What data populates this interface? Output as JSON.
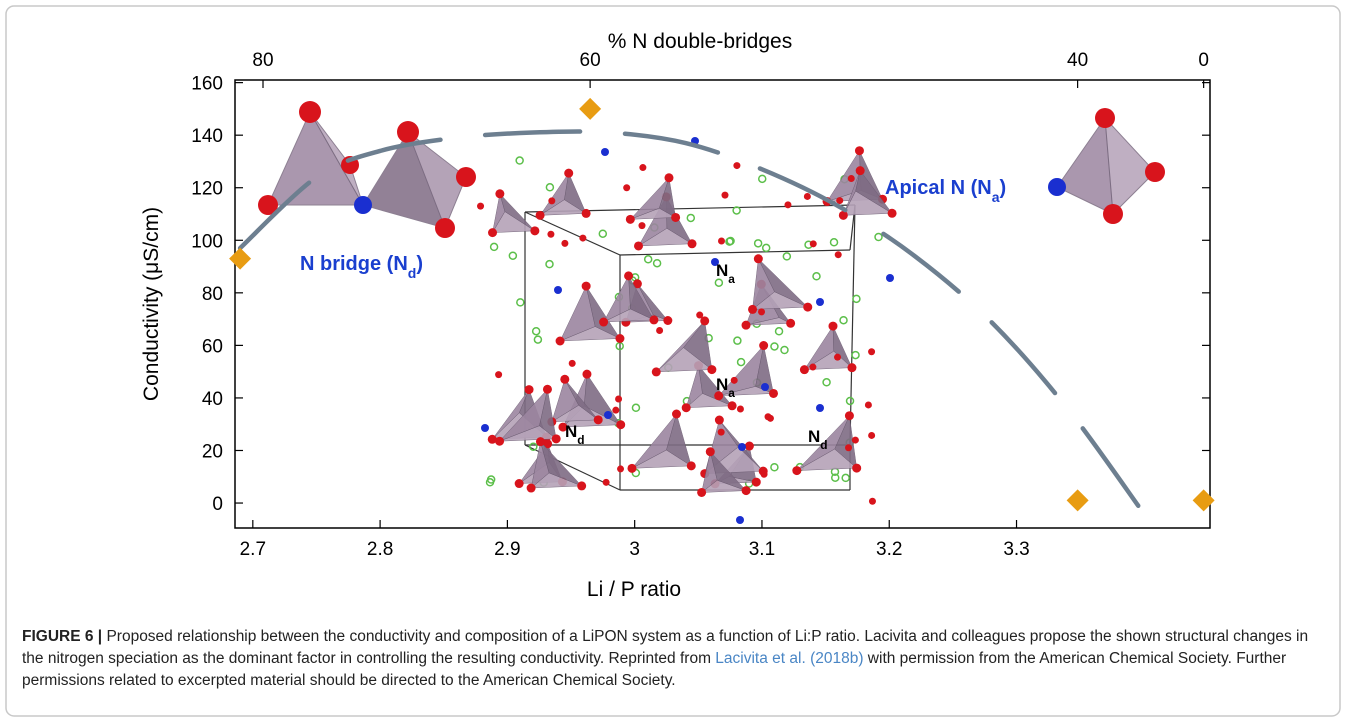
{
  "chart_data": {
    "type": "scatter",
    "xlabel": "Li / P ratio",
    "ylabel": "Conductivity (μS/cm)",
    "xlim": [
      2.686,
      3.452
    ],
    "ylim": [
      -9.5,
      161
    ],
    "xticks": [
      2.7,
      2.8,
      2.9,
      3.0,
      3.1,
      3.2,
      3.3
    ],
    "yticks": [
      0,
      20,
      40,
      60,
      80,
      100,
      120,
      140,
      160
    ],
    "x2label": "% N double-bridges",
    "x2ticks": [
      80,
      60,
      40,
      0
    ],
    "x2tick_at": [
      2.708,
      2.965,
      3.348,
      3.447
    ],
    "points": {
      "color": "#e89c12",
      "x": [
        2.69,
        2.965,
        3.348,
        3.447
      ],
      "y": [
        93,
        150,
        1,
        1
      ]
    },
    "curve": {
      "color": "#6d7f90",
      "x": [
        2.69,
        2.75,
        2.8,
        2.86,
        2.92,
        2.98,
        3.04,
        3.1,
        3.16,
        3.22,
        3.28,
        3.34,
        3.4
      ],
      "y": [
        97,
        124,
        134,
        139,
        141,
        141,
        137,
        127,
        113,
        94,
        69,
        36,
        -4
      ]
    },
    "annotations": [
      {
        "main": "N bridge (N",
        "sub": "d",
        "tail": ")"
      },
      {
        "main": "Apical N (N",
        "sub": "a",
        "tail": ")"
      },
      {
        "main": "N",
        "sub": "a"
      },
      {
        "main": "N",
        "sub": "a"
      },
      {
        "main": "N",
        "sub": "d"
      },
      {
        "main": "N",
        "sub": "d"
      }
    ]
  },
  "caption": {
    "label": "FIGURE 6 |",
    "text1": " Proposed relationship between the conductivity and composition of a LiPON system as a function of Li:P ratio. Lacivita and colleagues propose the shown structural changes in the nitrogen speciation as the dominant factor in controlling the resulting conductivity. Reprinted from ",
    "link": "Lacivita et al. (2018b)",
    "text2": " with permission from the American Chemical Society. Further permissions related to excerpted material should be directed to the American Chemical Society."
  }
}
